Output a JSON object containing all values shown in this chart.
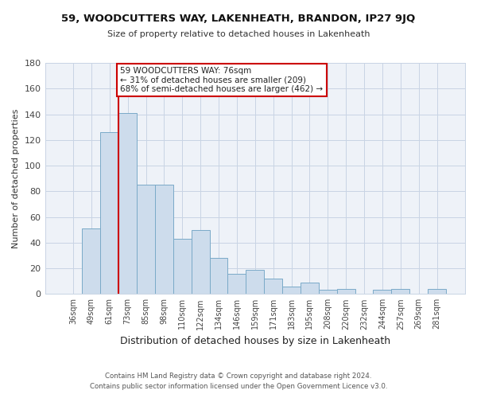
{
  "title": "59, WOODCUTTERS WAY, LAKENHEATH, BRANDON, IP27 9JQ",
  "subtitle": "Size of property relative to detached houses in Lakenheath",
  "xlabel": "Distribution of detached houses by size in Lakenheath",
  "ylabel": "Number of detached properties",
  "bar_labels": [
    "36sqm",
    "49sqm",
    "61sqm",
    "73sqm",
    "85sqm",
    "98sqm",
    "110sqm",
    "122sqm",
    "134sqm",
    "146sqm",
    "159sqm",
    "171sqm",
    "183sqm",
    "195sqm",
    "208sqm",
    "220sqm",
    "232sqm",
    "244sqm",
    "257sqm",
    "269sqm",
    "281sqm"
  ],
  "bar_values": [
    0,
    51,
    126,
    141,
    85,
    85,
    43,
    50,
    28,
    16,
    19,
    12,
    6,
    9,
    3,
    4,
    0,
    3,
    4,
    0,
    4
  ],
  "bar_color": "#cddcec",
  "bar_edgecolor": "#7aaac8",
  "grid_color": "#c8d4e4",
  "background_color": "#eef2f8",
  "redline_x": 3.0,
  "annotation_line1": "59 WOODCUTTERS WAY: 76sqm",
  "annotation_line2": "← 31% of detached houses are smaller (209)",
  "annotation_line3": "68% of semi-detached houses are larger (462) →",
  "annotation_box_edgecolor": "#cc0000",
  "footnote1": "Contains HM Land Registry data © Crown copyright and database right 2024.",
  "footnote2": "Contains public sector information licensed under the Open Government Licence v3.0.",
  "ylim": [
    0,
    180
  ],
  "yticks": [
    0,
    20,
    40,
    60,
    80,
    100,
    120,
    140,
    160,
    180
  ]
}
